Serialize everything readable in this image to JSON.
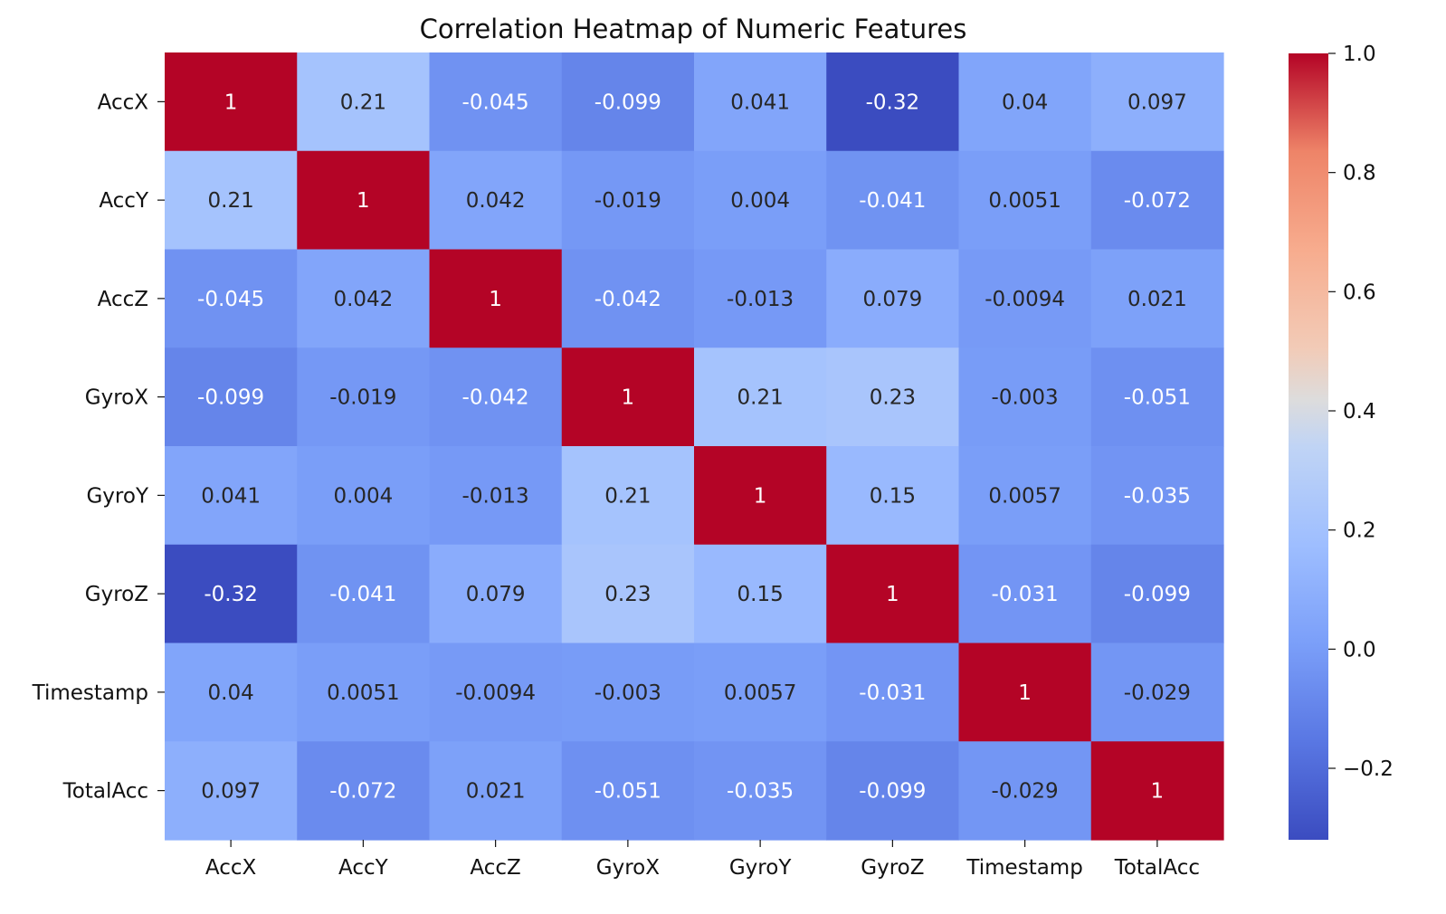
{
  "chart_data": {
    "type": "heatmap",
    "title": "Correlation Heatmap of Numeric Features",
    "xlabel": "",
    "ylabel": "",
    "x_labels": [
      "AccX",
      "AccY",
      "AccZ",
      "GyroX",
      "GyroY",
      "GyroZ",
      "Timestamp",
      "TotalAcc"
    ],
    "y_labels": [
      "AccX",
      "AccY",
      "AccZ",
      "GyroX",
      "GyroY",
      "GyroZ",
      "Timestamp",
      "TotalAcc"
    ],
    "values": [
      [
        1,
        0.21,
        -0.045,
        -0.099,
        0.041,
        -0.32,
        0.04,
        0.097
      ],
      [
        0.21,
        1,
        0.042,
        -0.019,
        0.004,
        -0.041,
        0.0051,
        -0.072
      ],
      [
        -0.045,
        0.042,
        1,
        -0.042,
        -0.013,
        0.079,
        -0.0094,
        0.021
      ],
      [
        -0.099,
        -0.019,
        -0.042,
        1,
        0.21,
        0.23,
        -0.003,
        -0.051
      ],
      [
        0.041,
        0.004,
        -0.013,
        0.21,
        1,
        0.15,
        0.0057,
        -0.035
      ],
      [
        -0.32,
        -0.041,
        0.079,
        0.23,
        0.15,
        1,
        -0.031,
        -0.099
      ],
      [
        0.04,
        0.0051,
        -0.0094,
        -0.003,
        0.0057,
        -0.031,
        1,
        -0.029
      ],
      [
        0.097,
        -0.072,
        0.021,
        -0.051,
        -0.035,
        -0.099,
        -0.029,
        1
      ]
    ],
    "colormap": "coolwarm",
    "vmin": -0.32,
    "vmax": 1.0,
    "colorbar_ticks": [
      "1.0",
      "0.8",
      "0.6",
      "0.4",
      "0.2",
      "0.0",
      "−0.2"
    ],
    "colorbar_tick_values": [
      1.0,
      0.8,
      0.6,
      0.4,
      0.2,
      0.0,
      -0.2
    ],
    "annotations": true,
    "grid": false,
    "legend": "colorbar-right"
  }
}
